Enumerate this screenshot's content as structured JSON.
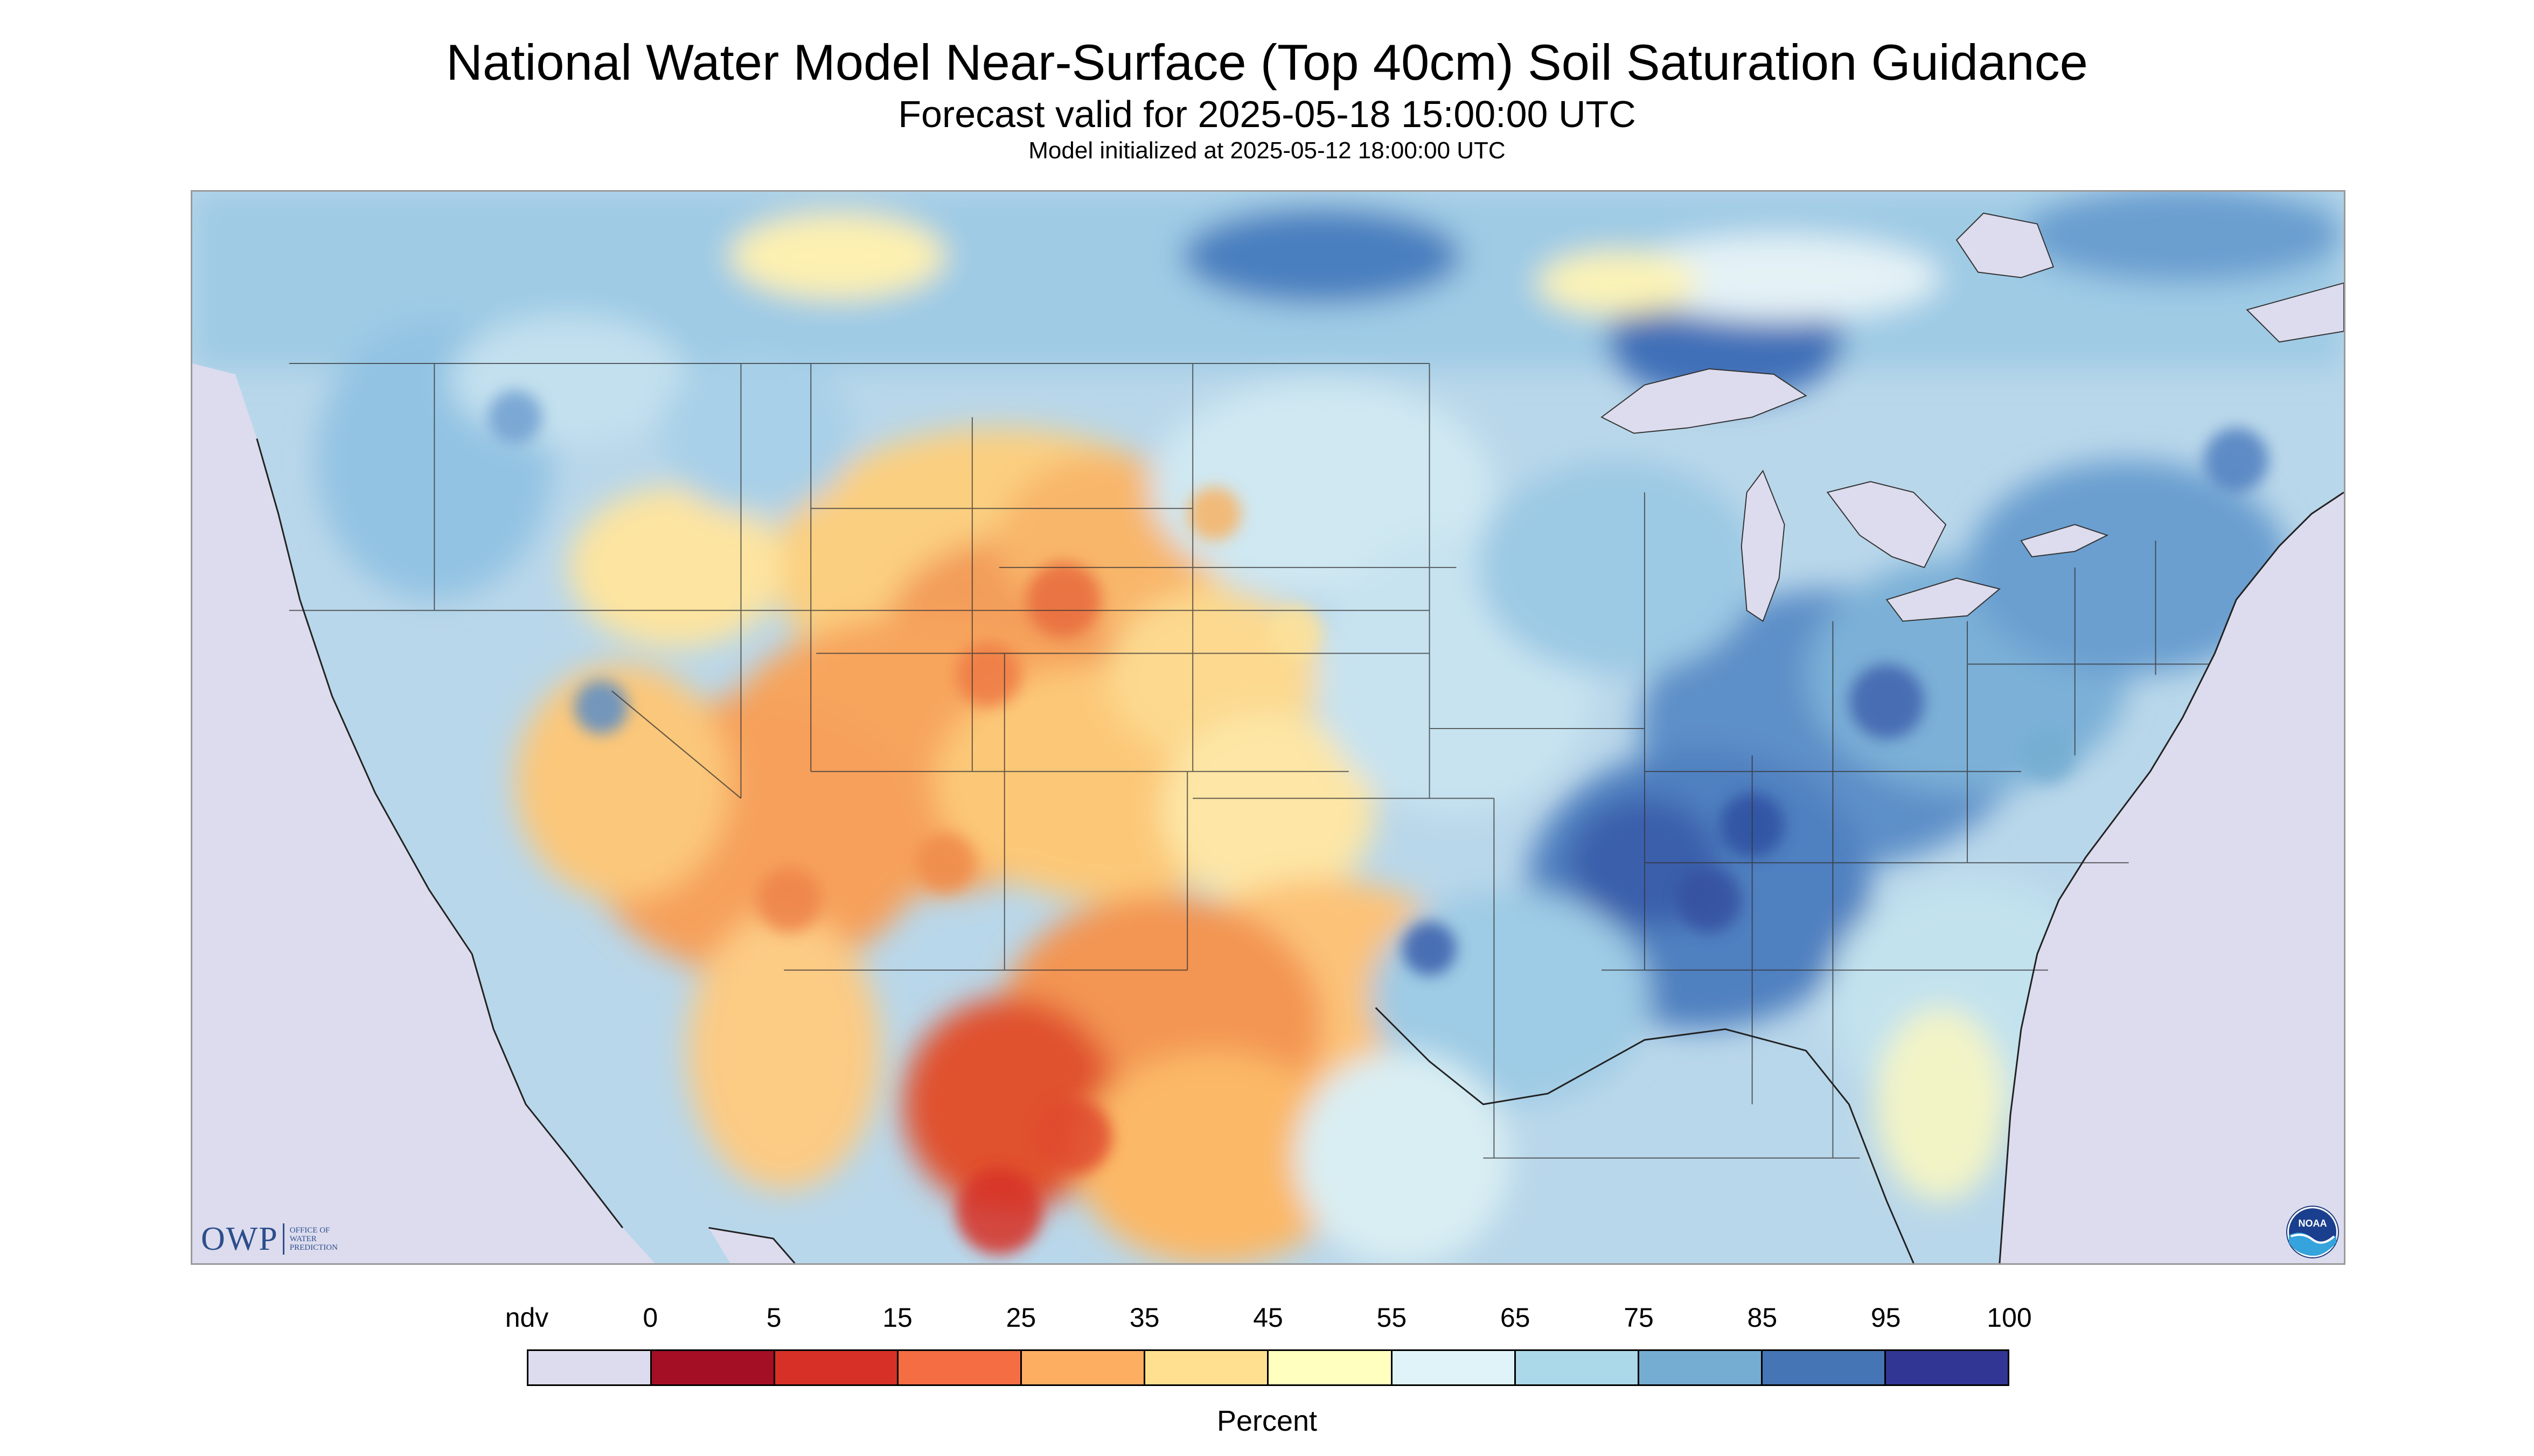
{
  "header": {
    "title": "National Water Model Near-Surface (Top 40cm) Soil Saturation Guidance",
    "subtitle": "Forecast valid for 2025-05-18 15:00:00 UTC",
    "init_line": "Model initialized at 2025-05-12 18:00:00 UTC"
  },
  "map": {
    "region": "Continental United States",
    "no_data_color": "#dcdcee"
  },
  "logos": {
    "owp_letters": "OWP",
    "owp_line1": "Office of",
    "owp_line2": "Water",
    "owp_line3": "Prediction",
    "noaa_text": "NOAA"
  },
  "legend": {
    "unit": "Percent",
    "labels": [
      "ndv",
      "0",
      "5",
      "15",
      "25",
      "35",
      "45",
      "55",
      "65",
      "75",
      "85",
      "95",
      "100"
    ],
    "colors": [
      "#dcdcee",
      "#a50f26",
      "#d73027",
      "#f46d43",
      "#fdae61",
      "#fee090",
      "#ffffbf",
      "#e0f3f8",
      "#abd9e9",
      "#74add1",
      "#4575b4",
      "#313695"
    ]
  }
}
